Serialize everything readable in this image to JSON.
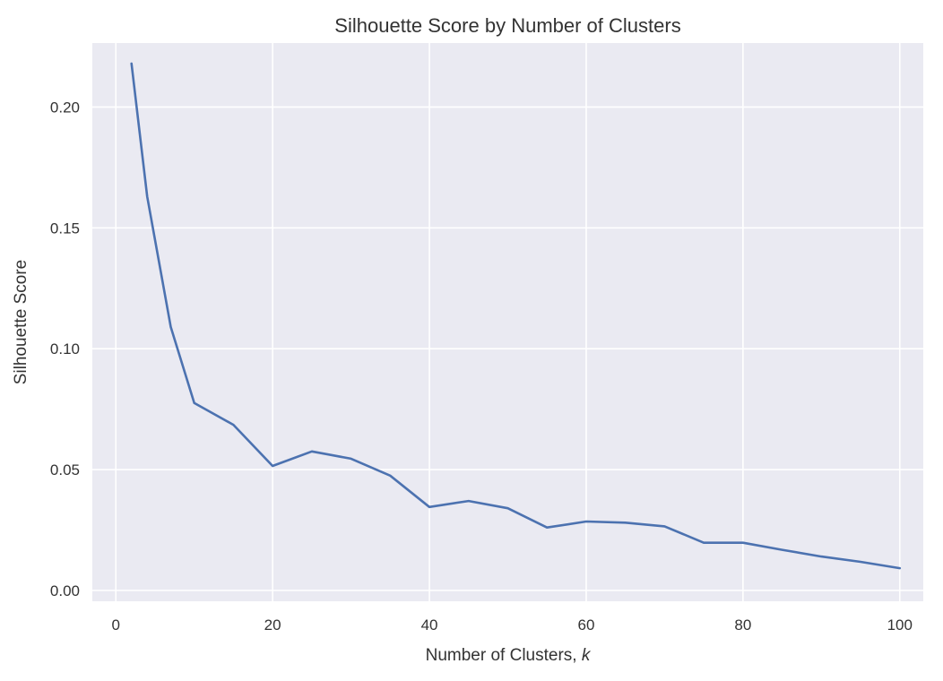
{
  "chart_data": {
    "type": "line",
    "title": "Silhouette Score by Number of Clusters",
    "xlabel": "Number of Clusters, ",
    "xlabel_var": "k",
    "ylabel": "Silhouette Score",
    "xlim": [
      -3,
      103
    ],
    "ylim": [
      -0.0045,
      0.2265
    ],
    "xticks": [
      0,
      20,
      40,
      60,
      80,
      100
    ],
    "xtick_labels": [
      "0",
      "20",
      "40",
      "60",
      "80",
      "100"
    ],
    "yticks": [
      0.0,
      0.05,
      0.1,
      0.15,
      0.2
    ],
    "ytick_labels": [
      "0.00",
      "0.05",
      "0.10",
      "0.15",
      "0.20"
    ],
    "grid": true,
    "legend": "none",
    "series": [
      {
        "color": "#4c72b0",
        "x": [
          2,
          4,
          7,
          10,
          15,
          20,
          25,
          30,
          35,
          40,
          45,
          50,
          55,
          60,
          65,
          70,
          75,
          80,
          85,
          90,
          95,
          100
        ],
        "y": [
          0.218,
          0.163,
          0.109,
          0.0775,
          0.0685,
          0.0515,
          0.0575,
          0.0545,
          0.0475,
          0.0345,
          0.037,
          0.034,
          0.026,
          0.0285,
          0.028,
          0.0265,
          0.0197,
          0.0197,
          0.0168,
          0.014,
          0.0118,
          0.0092
        ]
      }
    ]
  },
  "colors": {
    "plot_background": "#eaeaf2",
    "grid": "#ffffff",
    "text": "#333333"
  }
}
